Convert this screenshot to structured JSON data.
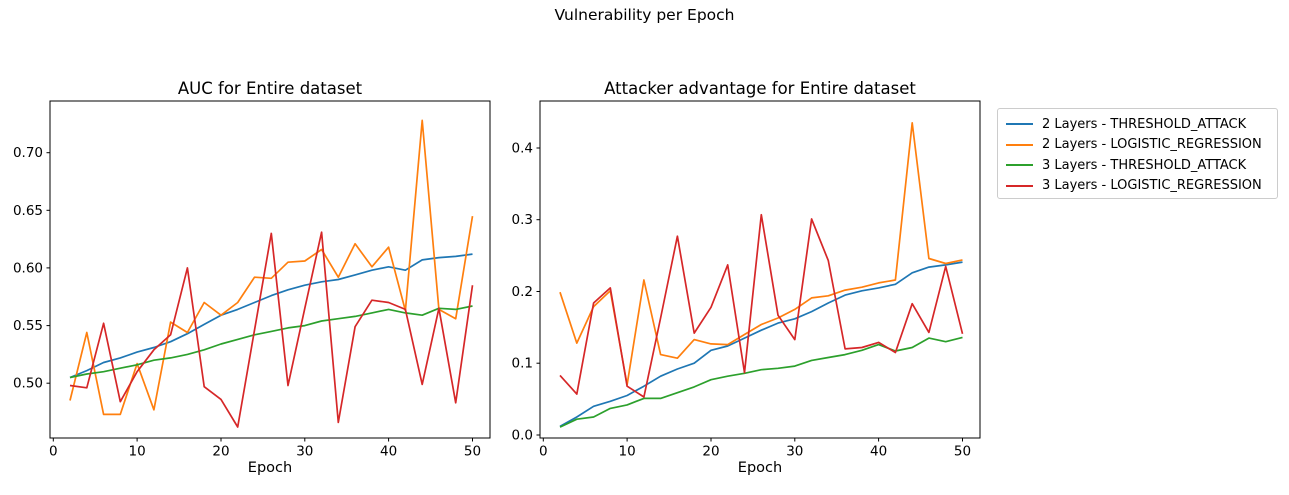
{
  "figure": {
    "title": "Vulnerability per Epoch"
  },
  "colors": {
    "blue": "#1f77b4",
    "orange": "#ff7f0e",
    "green": "#2ca02c",
    "red": "#d62728"
  },
  "legend": {
    "items": [
      {
        "label": "2 Layers - THRESHOLD_ATTACK",
        "color": "blue"
      },
      {
        "label": "2 Layers - LOGISTIC_REGRESSION",
        "color": "orange"
      },
      {
        "label": "3 Layers - THRESHOLD_ATTACK",
        "color": "green"
      },
      {
        "label": "3 Layers - LOGISTIC_REGRESSION",
        "color": "red"
      }
    ]
  },
  "chart_data": [
    {
      "type": "line",
      "title": "AUC for Entire dataset",
      "xlabel": "Epoch",
      "grid": false,
      "legend_position": "outside-right-of-second-plot",
      "x": [
        2,
        4,
        6,
        8,
        10,
        12,
        14,
        16,
        18,
        20,
        22,
        24,
        26,
        28,
        30,
        32,
        34,
        36,
        38,
        40,
        42,
        44,
        46,
        48,
        50
      ],
      "xlim": [
        -0.39,
        52.09
      ],
      "ylim": [
        0.4525,
        0.7448
      ],
      "xticks": [
        0,
        10,
        20,
        30,
        40,
        50
      ],
      "xtick_labels": [
        "0",
        "10",
        "20",
        "30",
        "40",
        "50"
      ],
      "yticks": [
        0.5,
        0.55,
        0.6,
        0.65,
        0.7
      ],
      "ytick_labels": [
        "0.50",
        "0.55",
        "0.60",
        "0.65",
        "0.70"
      ],
      "series": [
        {
          "name": "2 Layers - THRESHOLD_ATTACK",
          "color": "blue",
          "values": [
            0.505,
            0.511,
            0.518,
            0.522,
            0.527,
            0.531,
            0.536,
            0.543,
            0.551,
            0.559,
            0.564,
            0.57,
            0.576,
            0.581,
            0.585,
            0.588,
            0.59,
            0.594,
            0.598,
            0.601,
            0.598,
            0.607,
            0.609,
            0.61,
            0.612
          ]
        },
        {
          "name": "2 Layers - LOGISTIC_REGRESSION",
          "color": "orange",
          "values": [
            0.485,
            0.544,
            0.473,
            0.473,
            0.517,
            0.477,
            0.553,
            0.544,
            0.57,
            0.559,
            0.57,
            0.592,
            0.591,
            0.605,
            0.606,
            0.616,
            0.592,
            0.621,
            0.601,
            0.618,
            0.563,
            0.728,
            0.564,
            0.556,
            0.645
          ]
        },
        {
          "name": "3 Layers - THRESHOLD_ATTACK",
          "color": "green",
          "values": [
            0.505,
            0.508,
            0.51,
            0.513,
            0.516,
            0.52,
            0.522,
            0.525,
            0.529,
            0.534,
            0.538,
            0.542,
            0.545,
            0.548,
            0.55,
            0.554,
            0.556,
            0.558,
            0.561,
            0.564,
            0.561,
            0.559,
            0.565,
            0.564,
            0.567
          ]
        },
        {
          "name": "3 Layers - LOGISTIC_REGRESSION",
          "color": "red",
          "values": [
            0.498,
            0.496,
            0.552,
            0.484,
            0.51,
            0.529,
            0.542,
            0.6,
            0.497,
            0.486,
            0.462,
            0.546,
            0.63,
            0.498,
            0.565,
            0.631,
            0.466,
            0.549,
            0.572,
            0.57,
            0.564,
            0.499,
            0.565,
            0.483,
            0.585
          ]
        }
      ]
    },
    {
      "type": "line",
      "title": "Attacker advantage for Entire dataset",
      "xlabel": "Epoch",
      "grid": false,
      "x": [
        2,
        4,
        6,
        8,
        10,
        12,
        14,
        16,
        18,
        20,
        22,
        24,
        26,
        28,
        30,
        32,
        34,
        36,
        38,
        40,
        42,
        44,
        46,
        48,
        50
      ],
      "xlim": [
        -0.39,
        52.09
      ],
      "ylim": [
        -0.0042,
        0.4655
      ],
      "xticks": [
        0,
        10,
        20,
        30,
        40,
        50
      ],
      "xtick_labels": [
        "0",
        "10",
        "20",
        "30",
        "40",
        "50"
      ],
      "yticks": [
        0.0,
        0.1,
        0.2,
        0.3,
        0.4
      ],
      "ytick_labels": [
        "0.0",
        "0.1",
        "0.2",
        "0.3",
        "0.4"
      ],
      "series": [
        {
          "name": "2 Layers - THRESHOLD_ATTACK",
          "color": "blue",
          "values": [
            0.012,
            0.025,
            0.04,
            0.047,
            0.055,
            0.068,
            0.082,
            0.092,
            0.1,
            0.118,
            0.124,
            0.135,
            0.146,
            0.156,
            0.162,
            0.172,
            0.184,
            0.195,
            0.201,
            0.205,
            0.21,
            0.226,
            0.234,
            0.237,
            0.241
          ]
        },
        {
          "name": "2 Layers - LOGISTIC_REGRESSION",
          "color": "orange",
          "values": [
            0.199,
            0.128,
            0.179,
            0.201,
            0.07,
            0.216,
            0.112,
            0.107,
            0.133,
            0.127,
            0.126,
            0.14,
            0.154,
            0.163,
            0.175,
            0.191,
            0.194,
            0.202,
            0.206,
            0.212,
            0.216,
            0.435,
            0.246,
            0.239,
            0.244
          ]
        },
        {
          "name": "3 Layers - THRESHOLD_ATTACK",
          "color": "green",
          "values": [
            0.011,
            0.022,
            0.025,
            0.037,
            0.042,
            0.051,
            0.051,
            0.059,
            0.067,
            0.077,
            0.082,
            0.086,
            0.091,
            0.093,
            0.096,
            0.104,
            0.108,
            0.112,
            0.118,
            0.126,
            0.117,
            0.122,
            0.135,
            0.13,
            0.136
          ]
        },
        {
          "name": "3 Layers - LOGISTIC_REGRESSION",
          "color": "red",
          "values": [
            0.083,
            0.057,
            0.184,
            0.205,
            0.068,
            0.053,
            0.163,
            0.277,
            0.142,
            0.178,
            0.237,
            0.087,
            0.307,
            0.167,
            0.133,
            0.301,
            0.243,
            0.12,
            0.122,
            0.129,
            0.115,
            0.183,
            0.143,
            0.235,
            0.141
          ]
        }
      ]
    }
  ]
}
